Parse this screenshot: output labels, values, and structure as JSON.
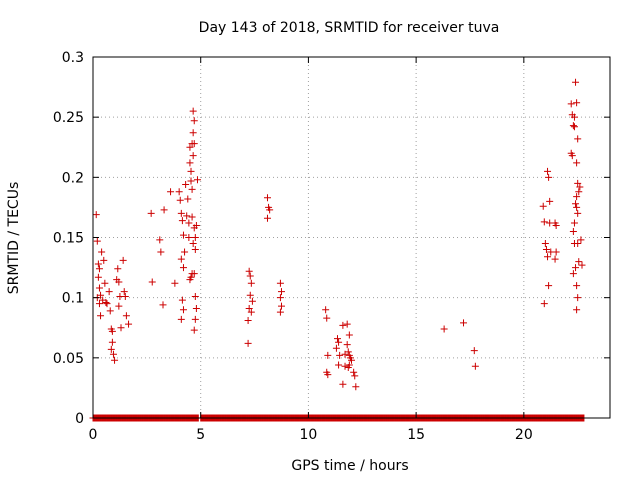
{
  "chart_data": {
    "type": "scatter",
    "title": "Day 143 of 2018, SRMTID for receiver tuva",
    "xlabel": "GPS time / hours",
    "ylabel": "SRMTID / TECUs",
    "xlim": [
      0,
      24
    ],
    "ylim": [
      0,
      0.3
    ],
    "x_ticks": [
      0,
      5,
      10,
      15,
      20
    ],
    "y_ticks": [
      0,
      0.05,
      0.1,
      0.15,
      0.2,
      0.25,
      0.3
    ],
    "x_tick_labels": [
      "0",
      "5",
      "10",
      "15",
      "20"
    ],
    "y_tick_labels": [
      "0",
      "0.05",
      "0.1",
      "0.15",
      "0.2",
      "0.25",
      "0.3"
    ],
    "grid": true,
    "grid_style": "dotted",
    "marker": "plus",
    "marker_color": "#cc0000",
    "series": [
      {
        "points": [
          [
            0.15,
            0.169
          ],
          [
            0.2,
            0.147
          ],
          [
            0.25,
            0.128
          ],
          [
            0.3,
            0.124
          ],
          [
            0.25,
            0.117
          ],
          [
            0.3,
            0.108
          ],
          [
            0.35,
            0.102
          ],
          [
            0.2,
            0.1
          ],
          [
            0.3,
            0.095
          ],
          [
            0.35,
            0.085
          ],
          [
            0.4,
            0.138
          ],
          [
            0.5,
            0.131
          ],
          [
            0.55,
            0.112
          ],
          [
            0.45,
            0.098
          ],
          [
            0.6,
            0.096
          ],
          [
            0.65,
            0.095
          ],
          [
            0.75,
            0.105
          ],
          [
            0.8,
            0.089
          ],
          [
            0.85,
            0.074
          ],
          [
            0.9,
            0.072
          ],
          [
            0.9,
            0.063
          ],
          [
            0.85,
            0.057
          ],
          [
            0.95,
            0.053
          ],
          [
            1.0,
            0.048
          ],
          [
            1.1,
            0.115
          ],
          [
            1.15,
            0.124
          ],
          [
            1.2,
            0.113
          ],
          [
            1.25,
            0.101
          ],
          [
            1.2,
            0.093
          ],
          [
            1.3,
            0.075
          ],
          [
            1.4,
            0.131
          ],
          [
            1.45,
            0.105
          ],
          [
            1.5,
            0.101
          ],
          [
            1.55,
            0.085
          ],
          [
            1.65,
            0.078
          ],
          [
            2.7,
            0.17
          ],
          [
            2.75,
            0.113
          ],
          [
            3.1,
            0.148
          ],
          [
            3.15,
            0.138
          ],
          [
            3.3,
            0.173
          ],
          [
            3.25,
            0.094
          ],
          [
            3.6,
            0.188
          ],
          [
            3.8,
            0.112
          ],
          [
            4.0,
            0.188
          ],
          [
            4.05,
            0.181
          ],
          [
            4.1,
            0.17
          ],
          [
            4.15,
            0.164
          ],
          [
            4.2,
            0.152
          ],
          [
            4.25,
            0.138
          ],
          [
            4.1,
            0.132
          ],
          [
            4.2,
            0.125
          ],
          [
            4.15,
            0.098
          ],
          [
            4.2,
            0.09
          ],
          [
            4.1,
            0.082
          ],
          [
            4.3,
            0.194
          ],
          [
            4.35,
            0.168
          ],
          [
            4.4,
            0.182
          ],
          [
            4.45,
            0.162
          ],
          [
            4.45,
            0.15
          ],
          [
            4.5,
            0.225
          ],
          [
            4.5,
            0.212
          ],
          [
            4.55,
            0.205
          ],
          [
            4.6,
            0.228
          ],
          [
            4.55,
            0.197
          ],
          [
            4.6,
            0.19
          ],
          [
            4.65,
            0.255
          ],
          [
            4.7,
            0.247
          ],
          [
            4.65,
            0.237
          ],
          [
            4.7,
            0.228
          ],
          [
            4.65,
            0.218
          ],
          [
            4.6,
            0.167
          ],
          [
            4.7,
            0.158
          ],
          [
            4.75,
            0.15
          ],
          [
            4.65,
            0.145
          ],
          [
            4.6,
            0.12
          ],
          [
            4.7,
            0.12
          ],
          [
            4.5,
            0.115
          ],
          [
            4.55,
            0.117
          ],
          [
            4.75,
            0.101
          ],
          [
            4.8,
            0.091
          ],
          [
            4.75,
            0.082
          ],
          [
            4.7,
            0.073
          ],
          [
            4.8,
            0.16
          ],
          [
            4.75,
            0.14
          ],
          [
            4.85,
            0.198
          ],
          [
            7.25,
            0.122
          ],
          [
            7.3,
            0.118
          ],
          [
            7.35,
            0.112
          ],
          [
            7.3,
            0.102
          ],
          [
            7.4,
            0.097
          ],
          [
            7.25,
            0.091
          ],
          [
            7.35,
            0.088
          ],
          [
            7.2,
            0.081
          ],
          [
            7.2,
            0.062
          ],
          [
            8.1,
            0.183
          ],
          [
            8.15,
            0.175
          ],
          [
            8.2,
            0.173
          ],
          [
            8.1,
            0.166
          ],
          [
            8.7,
            0.112
          ],
          [
            8.75,
            0.105
          ],
          [
            8.7,
            0.1
          ],
          [
            8.75,
            0.093
          ],
          [
            8.7,
            0.088
          ],
          [
            10.8,
            0.09
          ],
          [
            10.85,
            0.083
          ],
          [
            10.9,
            0.052
          ],
          [
            10.85,
            0.038
          ],
          [
            10.9,
            0.036
          ],
          [
            11.35,
            0.066
          ],
          [
            11.4,
            0.063
          ],
          [
            11.3,
            0.058
          ],
          [
            11.45,
            0.052
          ],
          [
            11.4,
            0.044
          ],
          [
            11.6,
            0.077
          ],
          [
            11.7,
            0.053
          ],
          [
            11.8,
            0.078
          ],
          [
            11.9,
            0.069
          ],
          [
            11.8,
            0.061
          ],
          [
            11.85,
            0.055
          ],
          [
            11.9,
            0.052
          ],
          [
            11.95,
            0.05
          ],
          [
            12.0,
            0.048
          ],
          [
            11.7,
            0.043
          ],
          [
            11.85,
            0.042
          ],
          [
            11.9,
            0.044
          ],
          [
            11.6,
            0.028
          ],
          [
            12.1,
            0.038
          ],
          [
            12.15,
            0.035
          ],
          [
            12.2,
            0.026
          ],
          [
            16.3,
            0.074
          ],
          [
            17.2,
            0.079
          ],
          [
            17.7,
            0.056
          ],
          [
            17.75,
            0.043
          ],
          [
            20.9,
            0.176
          ],
          [
            20.95,
            0.163
          ],
          [
            21.0,
            0.145
          ],
          [
            21.05,
            0.14
          ],
          [
            21.1,
            0.134
          ],
          [
            20.95,
            0.095
          ],
          [
            21.15,
            0.11
          ],
          [
            21.1,
            0.205
          ],
          [
            21.15,
            0.2
          ],
          [
            21.2,
            0.18
          ],
          [
            21.2,
            0.162
          ],
          [
            21.25,
            0.138
          ],
          [
            21.45,
            0.162
          ],
          [
            21.5,
            0.16
          ],
          [
            21.5,
            0.138
          ],
          [
            21.45,
            0.132
          ],
          [
            22.2,
            0.261
          ],
          [
            22.25,
            0.252
          ],
          [
            22.3,
            0.243
          ],
          [
            22.2,
            0.22
          ],
          [
            22.25,
            0.218
          ],
          [
            22.35,
            0.25
          ],
          [
            22.35,
            0.242
          ],
          [
            22.4,
            0.279
          ],
          [
            22.45,
            0.262
          ],
          [
            22.5,
            0.232
          ],
          [
            22.45,
            0.212
          ],
          [
            22.5,
            0.195
          ],
          [
            22.45,
            0.184
          ],
          [
            22.4,
            0.178
          ],
          [
            22.35,
            0.162
          ],
          [
            22.3,
            0.155
          ],
          [
            22.35,
            0.145
          ],
          [
            22.45,
            0.175
          ],
          [
            22.5,
            0.17
          ],
          [
            22.55,
            0.188
          ],
          [
            22.6,
            0.192
          ],
          [
            22.65,
            0.148
          ],
          [
            22.5,
            0.145
          ],
          [
            22.55,
            0.13
          ],
          [
            22.4,
            0.125
          ],
          [
            22.45,
            0.11
          ],
          [
            22.5,
            0.1
          ],
          [
            22.45,
            0.09
          ],
          [
            22.3,
            0.12
          ],
          [
            22.7,
            0.127
          ]
        ],
        "zero_ranges": [
          [
            0.0,
            4.9
          ],
          [
            5.0,
            22.8
          ]
        ]
      }
    ]
  }
}
